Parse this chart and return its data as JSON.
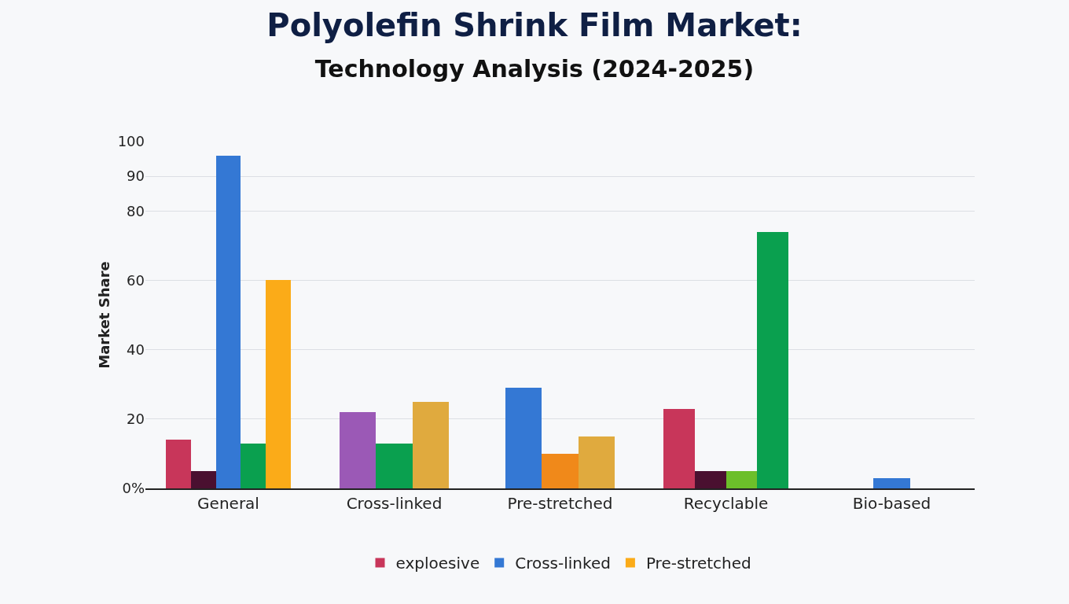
{
  "chart_data": {
    "type": "bar",
    "title": "Polyolefin Shrink Film Market:",
    "subtitle": "Technology Analysis (2024-2025)",
    "ylabel": "Market Share",
    "categories": [
      "General",
      "Cross-linked",
      "Pre-stretched",
      "Recyclable",
      "Bio-based"
    ],
    "ylim": [
      0,
      100
    ],
    "yticks": [
      {
        "value": 0,
        "label": "0%"
      },
      20,
      40,
      60,
      80,
      90,
      100
    ],
    "grid": "y",
    "legend": "bottom",
    "series": [
      {
        "name": "exploesive",
        "color": "#c8365a",
        "values": [
          14,
          null,
          null,
          23,
          null
        ]
      },
      {
        "color": "#9b59b6",
        "values": [
          null,
          22,
          null,
          null,
          null
        ]
      },
      {
        "color": "#4a1030",
        "values": [
          5,
          null,
          null,
          5,
          null
        ]
      },
      {
        "name": "Cross-linked",
        "color": "#3478d4",
        "values": [
          96,
          null,
          29,
          null,
          3
        ]
      },
      {
        "color": "#0aa04f",
        "colors": [
          "#0aa04f",
          null,
          null,
          "#6cbf2a",
          null
        ],
        "values": [
          13,
          null,
          null,
          5,
          null
        ]
      },
      {
        "color": "#0aa04f",
        "values": [
          null,
          13,
          null,
          74,
          null
        ]
      },
      {
        "color": "#f0891a",
        "values": [
          null,
          null,
          10,
          null,
          null
        ]
      },
      {
        "name": "Pre-stretched",
        "color": "#e0aa3e",
        "colors": [
          "#fbab18",
          "#e0aa3e",
          "#e0aa3e",
          null,
          null
        ],
        "values": [
          60,
          25,
          15,
          null,
          null
        ]
      }
    ]
  }
}
